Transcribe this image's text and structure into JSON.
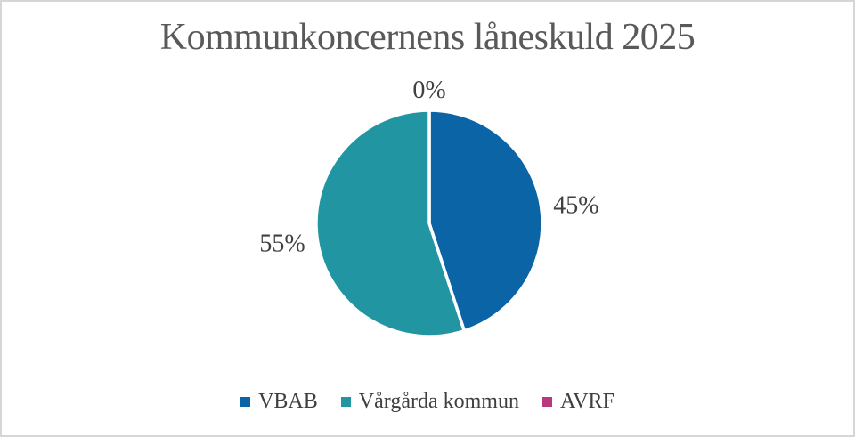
{
  "frame": {
    "background": "#FFFFFF",
    "border_color": "#D6D6D6"
  },
  "chart_data": {
    "type": "pie",
    "title": "Kommunkoncernens låneskuld 2025",
    "categories": [
      "VBAB",
      "Vårgårda kommun",
      "AVRF"
    ],
    "values": [
      45,
      55,
      0
    ],
    "data_labels": [
      "45%",
      "55%",
      "0%"
    ],
    "colors": [
      "#0A64A6",
      "#2295A3",
      "#B9377E"
    ],
    "start_angle_deg": 0,
    "direction": "clockwise",
    "slice_border_color": "#FFFFFF",
    "label_color": "#404040",
    "legend_text_color": "#404040",
    "title_color": "#595959",
    "legend_position": "bottom"
  }
}
